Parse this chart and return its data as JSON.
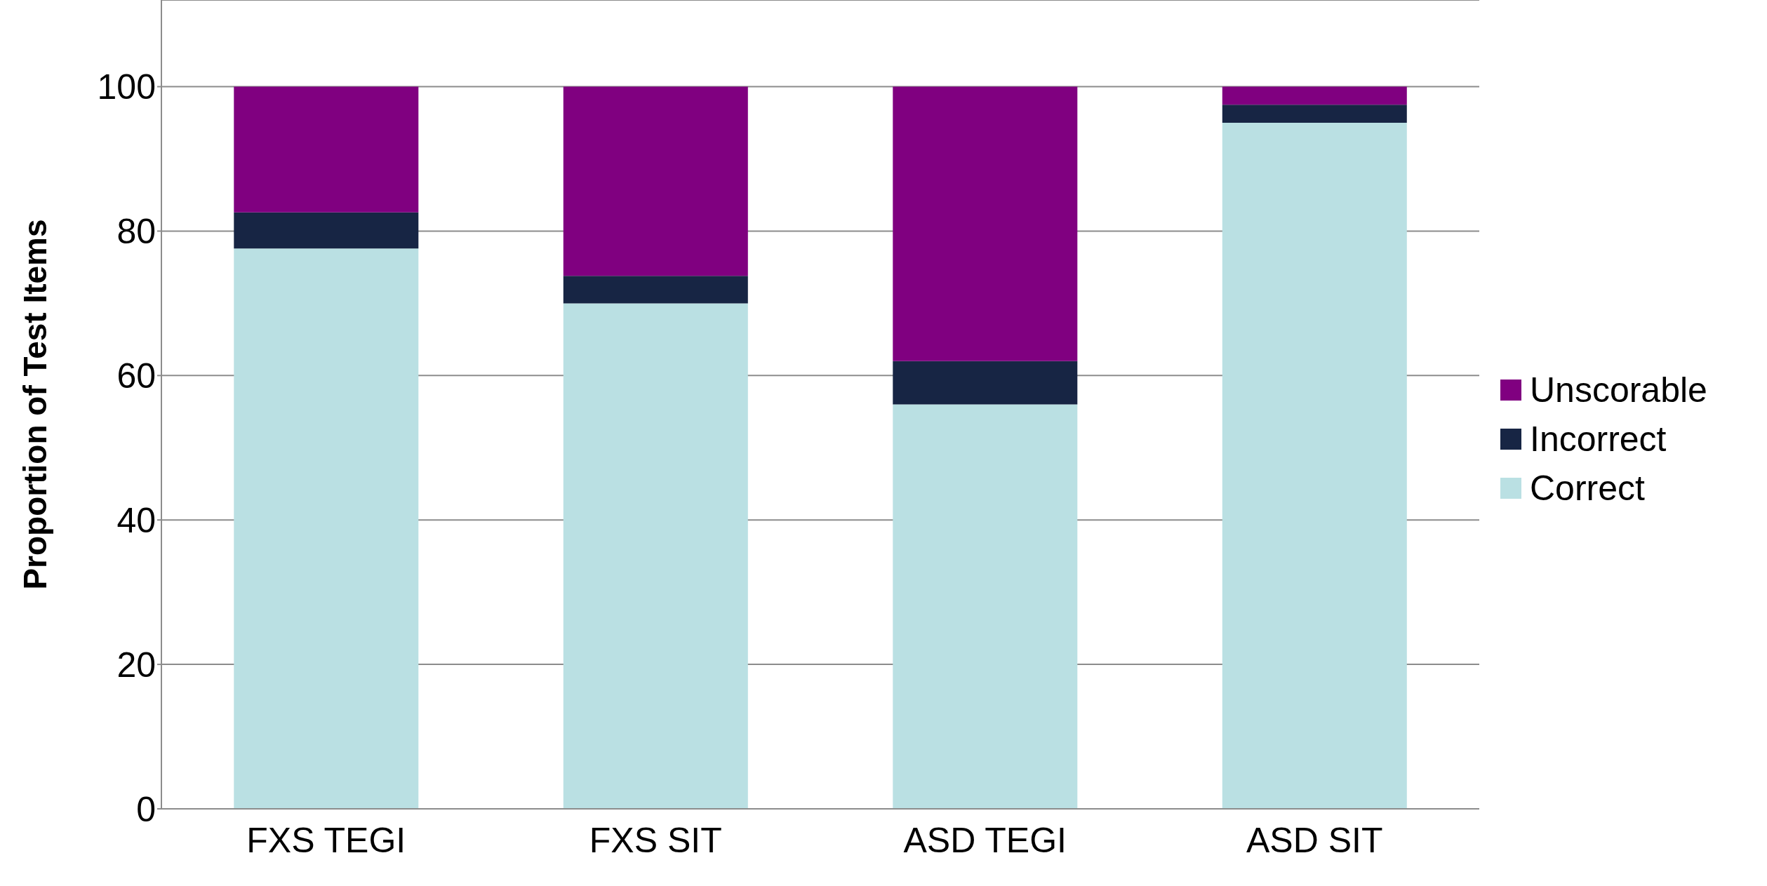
{
  "chart_data": {
    "type": "bar",
    "stacked": true,
    "ylabel": "Proportion of Test  Items",
    "categories": [
      "FXS TEGI",
      "FXS SIT",
      "ASD TEGI",
      "ASD SIT"
    ],
    "series": [
      {
        "name": "Correct",
        "color": "#bae0e3",
        "values": [
          77.6,
          70.0,
          56.0,
          95.0
        ]
      },
      {
        "name": "Incorrect",
        "color": "#172544",
        "values": [
          5.0,
          3.8,
          6.0,
          2.5
        ]
      },
      {
        "name": "Unscorable",
        "color": "#800080",
        "values": [
          17.4,
          26.2,
          38.0,
          2.5
        ]
      }
    ],
    "ylim": [
      0,
      112
    ],
    "yticks": [
      0,
      20,
      40,
      60,
      80,
      100
    ],
    "grid": "y",
    "legend": "right"
  }
}
